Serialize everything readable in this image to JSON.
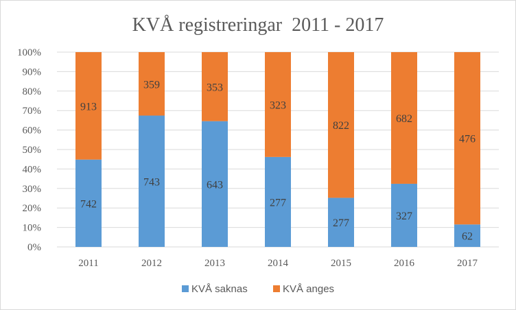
{
  "chart_data": {
    "type": "bar",
    "stacked": true,
    "normalized": true,
    "title": "KVÅ registreringar  2011 - 2017",
    "categories": [
      "2011",
      "2012",
      "2013",
      "2014",
      "2015",
      "2016",
      "2017"
    ],
    "series": [
      {
        "name": "KVÅ saknas",
        "color": "#5b9bd5",
        "values": [
          742,
          743,
          643,
          277,
          277,
          327,
          62
        ]
      },
      {
        "name": "KVÅ anges",
        "color": "#ed7d31",
        "values": [
          913,
          359,
          353,
          323,
          822,
          682,
          476
        ]
      }
    ],
    "y_ticks": [
      "0%",
      "10%",
      "20%",
      "30%",
      "40%",
      "50%",
      "60%",
      "70%",
      "80%",
      "90%",
      "100%"
    ],
    "ylim": [
      0,
      100
    ],
    "grid": true,
    "legend_position": "bottom",
    "data_labels": true
  }
}
